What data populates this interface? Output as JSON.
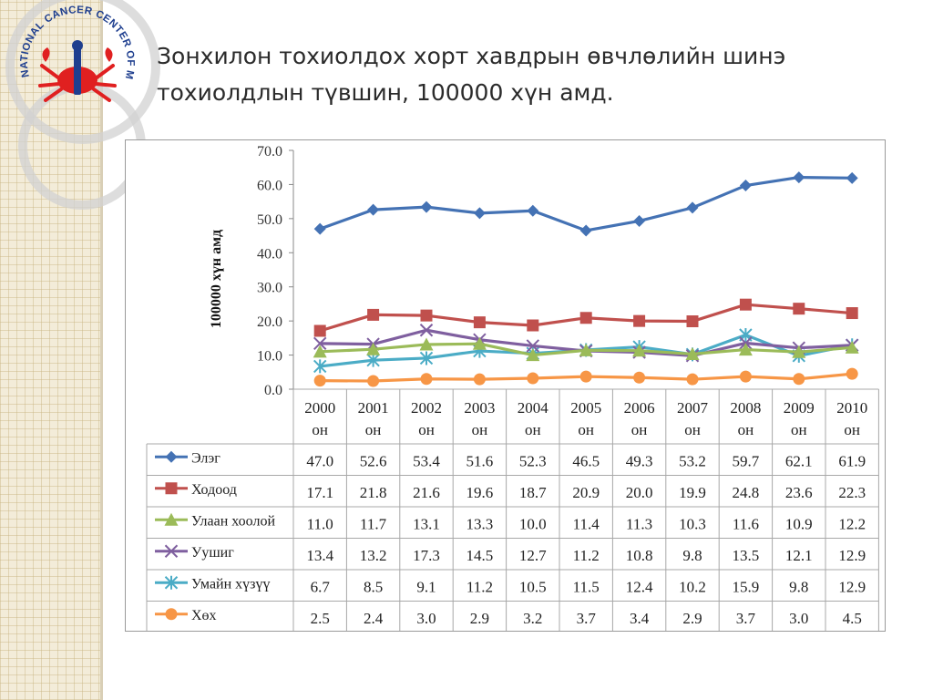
{
  "logo": {
    "text": "NATIONAL CANCER CENTER OF MONGOLIA",
    "icon": "crab-emblem-icon",
    "colors": {
      "ring": "#1f3f8f",
      "crab": "#e02020"
    }
  },
  "title": {
    "line1": "Зонхилон тохиолдох хорт хавдрын өвчлөлийн шинэ",
    "line2": "тохиолдлын түвшин, 100000 хүн амд."
  },
  "chart_data": {
    "type": "line",
    "ylabel": "100000 хүн амд",
    "ylim": [
      0,
      70
    ],
    "yticks": [
      "0.0",
      "10.0",
      "20.0",
      "30.0",
      "40.0",
      "50.0",
      "60.0",
      "70.0"
    ],
    "grid": false,
    "legend": "data-table-below",
    "categories": [
      {
        "year": "2000",
        "unit": "он"
      },
      {
        "year": "2001",
        "unit": "он"
      },
      {
        "year": "2002",
        "unit": "он"
      },
      {
        "year": "2003",
        "unit": "он"
      },
      {
        "year": "2004",
        "unit": "он"
      },
      {
        "year": "2005",
        "unit": "он"
      },
      {
        "year": "2006",
        "unit": "он"
      },
      {
        "year": "2007",
        "unit": "он"
      },
      {
        "year": "2008",
        "unit": "он"
      },
      {
        "year": "2009",
        "unit": "он"
      },
      {
        "year": "2010",
        "unit": "он"
      }
    ],
    "series": [
      {
        "name": "Элэг",
        "color": "#4472b4",
        "marker": "diamond",
        "values": [
          47.0,
          52.6,
          53.4,
          51.6,
          52.3,
          46.5,
          49.3,
          53.2,
          59.7,
          62.1,
          61.9
        ],
        "labels": [
          "47.0",
          "52.6",
          "53.4",
          "51.6",
          "52.3",
          "46.5",
          "49.3",
          "53.2",
          "59.7",
          "62.1",
          "61.9"
        ]
      },
      {
        "name": "Ходоод",
        "color": "#c0504d",
        "marker": "square",
        "values": [
          17.1,
          21.8,
          21.6,
          19.6,
          18.7,
          20.9,
          20.0,
          19.9,
          24.8,
          23.6,
          22.3
        ],
        "labels": [
          "17.1",
          "21.8",
          "21.6",
          "19.6",
          "18.7",
          "20.9",
          "20.0",
          "19.9",
          "24.8",
          "23.6",
          "22.3"
        ]
      },
      {
        "name": "Улаан хоолой",
        "color": "#9bbb59",
        "marker": "triangle",
        "values": [
          11.0,
          11.7,
          13.1,
          13.3,
          10.0,
          11.4,
          11.3,
          10.3,
          11.6,
          10.9,
          12.2
        ],
        "labels": [
          "11.0",
          "11.7",
          "13.1",
          "13.3",
          "10.0",
          "11.4",
          "11.3",
          "10.3",
          "11.6",
          "10.9",
          "12.2"
        ]
      },
      {
        "name": "Уушиг",
        "color": "#7f5f9f",
        "marker": "x",
        "values": [
          13.4,
          13.2,
          17.3,
          14.5,
          12.7,
          11.2,
          10.8,
          9.8,
          13.5,
          12.1,
          12.9
        ],
        "labels": [
          "13.4",
          "13.2",
          "17.3",
          "14.5",
          "12.7",
          "11.2",
          "10.8",
          "9.8",
          "13.5",
          "12.1",
          "12.9"
        ]
      },
      {
        "name": "Умайн хүзүү",
        "color": "#4bacc6",
        "marker": "asterisk",
        "values": [
          6.7,
          8.5,
          9.1,
          11.2,
          10.5,
          11.5,
          12.4,
          10.2,
          15.9,
          9.8,
          12.9
        ],
        "labels": [
          "6.7",
          "8.5",
          "9.1",
          "11.2",
          "10.5",
          "11.5",
          "12.4",
          "10.2",
          "15.9",
          "9.8",
          "12.9"
        ]
      },
      {
        "name": "Хөх",
        "color": "#f79646",
        "marker": "circle",
        "values": [
          2.5,
          2.4,
          3.0,
          2.9,
          3.2,
          3.7,
          3.4,
          2.9,
          3.7,
          3.0,
          4.5
        ],
        "labels": [
          "2.5",
          "2.4",
          "3.0",
          "2.9",
          "3.2",
          "3.7",
          "3.4",
          "2.9",
          "3.7",
          "3.0",
          "4.5"
        ]
      }
    ]
  }
}
